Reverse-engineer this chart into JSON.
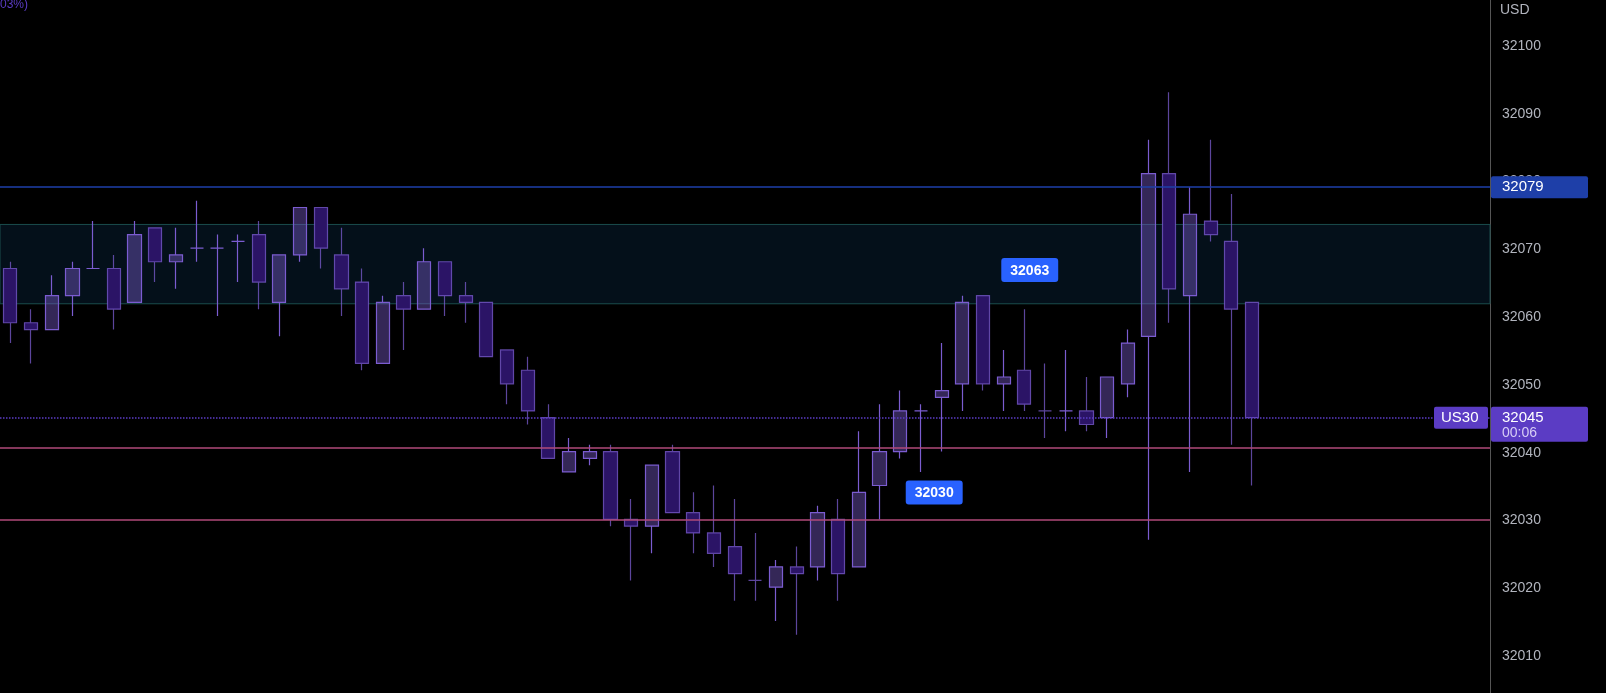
{
  "chart_data": {
    "type": "candlestick",
    "ylabel": "USD",
    "color": "#7b5cd0",
    "tick_labels": "y",
    "grid": false,
    "categories": [
      null,
      null,
      null,
      null,
      null,
      null,
      null,
      null,
      null,
      null,
      null,
      null,
      null,
      null,
      null,
      null,
      null,
      null,
      null,
      null,
      null,
      null,
      null,
      null,
      null,
      null,
      null,
      null,
      null,
      null,
      null,
      null,
      null,
      null,
      null,
      null,
      null,
      null,
      null,
      null,
      null,
      null,
      null,
      null,
      null,
      null,
      null,
      null,
      null,
      null,
      null,
      null,
      null,
      null,
      null,
      null,
      null,
      null,
      null,
      null,
      null,
      null,
      null,
      null,
      null,
      null,
      null,
      null,
      null,
      null,
      null,
      null
    ],
    "ohlc": [
      [
        32067,
        32068,
        32056,
        32059
      ],
      [
        32059,
        32061,
        32053,
        32058
      ],
      [
        32058,
        32066,
        32058,
        32063
      ],
      [
        32063,
        32068,
        32060,
        32067
      ],
      [
        32067,
        32074,
        32067,
        32067
      ],
      [
        32067,
        32069,
        32058,
        32061
      ],
      [
        32062,
        32074,
        32062,
        32072
      ],
      [
        32073,
        32073,
        32065,
        32068
      ],
      [
        32068,
        32073,
        32064,
        32069
      ],
      [
        32070,
        32077,
        32068,
        32070
      ],
      [
        32070,
        32072,
        32060,
        32070
      ],
      [
        32071,
        32072,
        32065,
        32071
      ],
      [
        32072,
        32074,
        32061,
        32065
      ],
      [
        32062,
        32069,
        32057,
        32069
      ],
      [
        32069,
        32076,
        32068,
        32076
      ],
      [
        32076,
        32076,
        32067,
        32070
      ],
      [
        32069,
        32073,
        32060,
        32064
      ],
      [
        32065,
        32067,
        32052,
        32053
      ],
      [
        32053,
        32063,
        32053,
        32062
      ],
      [
        32063,
        32065,
        32055,
        32061
      ],
      [
        32061,
        32070,
        32061,
        32068
      ],
      [
        32068,
        32068,
        32060,
        32063
      ],
      [
        32063,
        32065,
        32059,
        32062
      ],
      [
        32062,
        32062,
        32054,
        32054
      ],
      [
        32055,
        32055,
        32047,
        32050
      ],
      [
        32052,
        32054,
        32044,
        32046
      ],
      [
        32045,
        32047,
        32039,
        32039
      ],
      [
        32037,
        32042,
        32037,
        32040
      ],
      [
        32039,
        32041,
        32038,
        32040
      ],
      [
        32040,
        32041,
        32029,
        32030
      ],
      [
        32030,
        32033,
        32021,
        32029
      ],
      [
        32029,
        32038,
        32025,
        32038
      ],
      [
        32040,
        32041,
        32031,
        32031
      ],
      [
        32031,
        32034,
        32025,
        32028
      ],
      [
        32028,
        32035,
        32023,
        32025
      ],
      [
        32026,
        32033,
        32018,
        32022
      ],
      [
        32021,
        32028,
        32018,
        32021
      ],
      [
        32020,
        32024,
        32015,
        32023
      ],
      [
        32023,
        32026,
        32013,
        32022
      ],
      [
        32023,
        32032,
        32021,
        32031
      ],
      [
        32030,
        32033,
        32018,
        32022
      ],
      [
        32023,
        32043,
        32023,
        32034
      ],
      [
        32035,
        32047,
        32030,
        32040
      ],
      [
        32040,
        32049,
        32039,
        32046
      ],
      [
        32046,
        32047,
        32037,
        32046
      ],
      [
        32048,
        32056,
        32040,
        32049
      ],
      [
        32050,
        32063,
        32046,
        32062
      ],
      [
        32063,
        32063,
        32049,
        32050
      ],
      [
        32050,
        32055,
        32046,
        32051
      ],
      [
        32052,
        32061,
        32046,
        32047
      ],
      [
        32046,
        32053,
        32042,
        32046
      ],
      [
        32046,
        32055,
        32043,
        32046
      ],
      [
        32046,
        32051,
        32043,
        32044
      ],
      [
        32045,
        32051,
        32042,
        32051
      ],
      [
        32050,
        32058,
        32048,
        32056
      ],
      [
        32057,
        32086,
        32027,
        32081
      ],
      [
        32081,
        32093,
        32059,
        32064
      ],
      [
        32063,
        32079,
        32037,
        32075
      ],
      [
        32074,
        32086,
        32071,
        32072
      ],
      [
        32071,
        32078,
        32041,
        32061
      ],
      [
        32062,
        32062,
        32035,
        32045
      ],
      null,
      null,
      null,
      null,
      null,
      null,
      null,
      null,
      null,
      null,
      null
    ],
    "ylim": [
      32004.4,
      32106.6
    ],
    "yticks": [
      32010,
      32020,
      32030,
      32040,
      32050,
      32060,
      32070,
      32080,
      32090,
      32100
    ],
    "ref_lines": [
      {
        "axis": "y",
        "value": 32079,
        "label": "32079",
        "color": "#1e3fa8"
      },
      {
        "axis": "y",
        "value": 32045,
        "label": "32045",
        "color": "#5b3cc4",
        "line_style": "dotted"
      },
      {
        "axis": "y",
        "value": 32040.6,
        "color": "#b04a7a"
      },
      {
        "axis": "y",
        "value": 32030,
        "label": "32030",
        "color": "#b04a7a"
      }
    ],
    "bands": [
      {
        "axis": "y",
        "from": 32061.8,
        "to": 32073.5,
        "color": "#04101a"
      }
    ],
    "annotations": [
      "03%)",
      "32063",
      "US30",
      "00:06"
    ]
  }
}
